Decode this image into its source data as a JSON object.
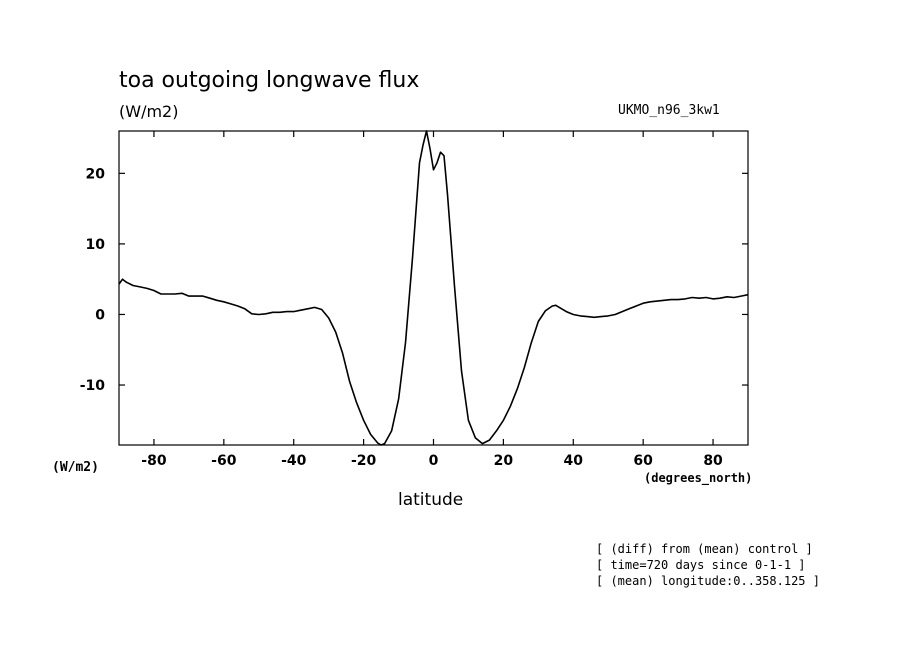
{
  "chart_data": {
    "type": "line",
    "title": "toa outgoing longwave flux",
    "subtitle": "(W/m2)",
    "dataset": "UKMO_n96_3kw1",
    "ylabel": "(W/m2)",
    "xlabel": "latitude",
    "xunits": "(degrees_north)",
    "xlim": [
      -90,
      90
    ],
    "ylim": [
      -18.5,
      26
    ],
    "xticks": [
      -80,
      -60,
      -40,
      -20,
      0,
      20,
      40,
      60,
      80
    ],
    "yticks": [
      -10,
      0,
      10,
      20
    ],
    "xtick_labels": [
      "-80",
      "-60",
      "-40",
      "-20",
      "0",
      "20",
      "40",
      "60",
      "80"
    ],
    "ytick_labels": [
      "-10",
      "0",
      "10",
      "20"
    ],
    "grid": false,
    "series": [
      {
        "x": [
          -90,
          -89,
          -88,
          -86,
          -84,
          -82,
          -80,
          -78,
          -76,
          -74,
          -72,
          -70,
          -68,
          -66,
          -64,
          -62,
          -60,
          -58,
          -56,
          -54,
          -52,
          -50,
          -48,
          -46,
          -44,
          -42,
          -40,
          -38,
          -36,
          -34,
          -32,
          -30,
          -28,
          -26,
          -24,
          -22,
          -20,
          -18,
          -16,
          -15,
          -14,
          -12,
          -10,
          -8,
          -6,
          -4,
          -3,
          -2,
          -1,
          0,
          1,
          2,
          3,
          4,
          6,
          8,
          10,
          12,
          14,
          16,
          18,
          20,
          22,
          24,
          26,
          28,
          30,
          32,
          34,
          35,
          36,
          38,
          40,
          42,
          44,
          46,
          48,
          50,
          52,
          54,
          56,
          58,
          60,
          62,
          64,
          66,
          68,
          70,
          72,
          74,
          76,
          78,
          80,
          82,
          84,
          86,
          88,
          90
        ],
        "y": [
          4.3,
          5.0,
          4.6,
          4.1,
          3.9,
          3.7,
          3.4,
          2.9,
          2.9,
          2.9,
          3.0,
          2.6,
          2.6,
          2.6,
          2.3,
          2.0,
          1.8,
          1.5,
          1.2,
          0.8,
          0.1,
          0.0,
          0.1,
          0.3,
          0.3,
          0.4,
          0.4,
          0.6,
          0.8,
          1.0,
          0.7,
          -0.5,
          -2.5,
          -5.5,
          -9.5,
          -12.5,
          -15.0,
          -17.0,
          -18.2,
          -18.5,
          -18.3,
          -16.5,
          -12.0,
          -4.0,
          8.0,
          21.5,
          24.0,
          26.0,
          23.5,
          20.5,
          21.5,
          23.0,
          22.5,
          17.0,
          4.0,
          -8.0,
          -15.0,
          -17.5,
          -18.3,
          -17.8,
          -16.5,
          -15.0,
          -13.0,
          -10.5,
          -7.5,
          -4.0,
          -1.0,
          0.5,
          1.2,
          1.3,
          1.0,
          0.4,
          0.0,
          -0.2,
          -0.3,
          -0.4,
          -0.3,
          -0.2,
          0.0,
          0.4,
          0.8,
          1.2,
          1.6,
          1.8,
          1.9,
          2.0,
          2.1,
          2.1,
          2.2,
          2.4,
          2.3,
          2.4,
          2.2,
          2.3,
          2.5,
          2.4,
          2.6,
          2.8
        ]
      }
    ]
  },
  "notes": [
    "[ (diff) from (mean) control ]",
    "[ time=720 days since 0-1-1 ]",
    "[ (mean) longitude:0..358.125 ]"
  ]
}
